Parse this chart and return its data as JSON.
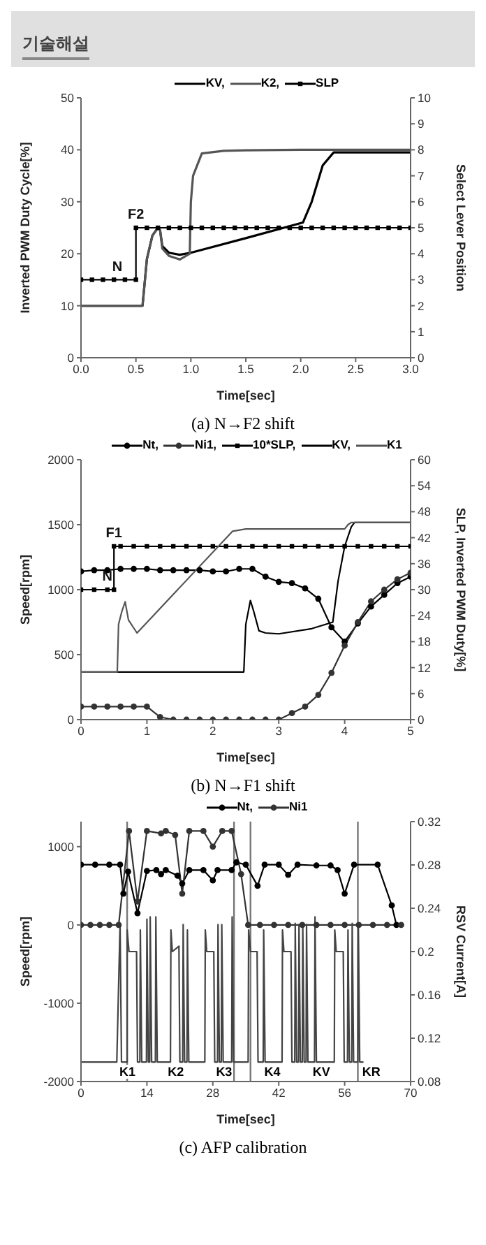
{
  "chart_data": [
    {
      "type": "other",
      "title": "기술해설"
    },
    {
      "type": "line",
      "xlabel": "Time[sec]",
      "ylabel": "Inverted PWM Duty Cycle[%]",
      "y2label": "Select Lever Position",
      "legend": "top",
      "xlim": [
        0,
        3
      ],
      "xticks": [
        {
          "value": 0,
          "label": "0.0"
        },
        {
          "value": 0.5,
          "label": "0.5"
        },
        {
          "value": 1,
          "label": "1.0"
        },
        {
          "value": 1.5,
          "label": "1.5"
        },
        {
          "value": 2,
          "label": "2.0"
        },
        {
          "value": 2.5,
          "label": "2.5"
        },
        {
          "value": 3,
          "label": "3.0"
        }
      ],
      "ylim": [
        0,
        50
      ],
      "yticks": [
        0,
        10,
        20,
        30,
        40,
        50
      ],
      "y2lim": [
        0,
        10
      ],
      "y2ticks": [
        0,
        1,
        2,
        3,
        4,
        5,
        6,
        7,
        8,
        9,
        10
      ],
      "series": [
        {
          "name": "KV,",
          "color": "#000000",
          "marker": "none",
          "x": [
            0,
            0.56,
            0.6,
            0.65,
            0.7,
            0.72,
            0.74,
            0.8,
            0.9,
            1.0,
            1.5,
            2.02,
            2.1,
            2.2,
            2.3,
            3.0
          ],
          "values": [
            10,
            10,
            19,
            23.5,
            25,
            24.5,
            21.5,
            20.2,
            19.8,
            20.2,
            23,
            26,
            30,
            37,
            39.5,
            39.5
          ]
        },
        {
          "name": "K2,",
          "color": "#555555",
          "marker": "none",
          "x": [
            0,
            0.56,
            0.6,
            0.65,
            0.7,
            0.72,
            0.74,
            0.8,
            0.9,
            0.99,
            1.0,
            1.02,
            1.1,
            1.3,
            1.5,
            2.0,
            3.0
          ],
          "values": [
            10,
            10,
            19,
            23.5,
            25,
            24.5,
            21,
            19.6,
            18.9,
            20,
            30,
            35,
            39.3,
            39.8,
            39.9,
            40,
            40
          ]
        },
        {
          "name": "SLP",
          "color": "#000000",
          "marker": "square",
          "axis": "y2",
          "x": [
            0,
            0.1,
            0.2,
            0.3,
            0.4,
            0.5,
            0.5,
            0.6,
            0.7,
            0.8,
            0.9,
            1.0,
            1.1,
            1.2,
            1.3,
            1.4,
            1.5,
            1.6,
            1.7,
            1.8,
            1.9,
            2.0,
            2.1,
            2.2,
            2.3,
            2.4,
            2.5,
            2.6,
            2.7,
            2.8,
            2.9,
            3.0
          ],
          "values": [
            3,
            3,
            3,
            3,
            3,
            3,
            5,
            5,
            5,
            5,
            5,
            5,
            5,
            5,
            5,
            5,
            5,
            5,
            5,
            5,
            5,
            5,
            5,
            5,
            5,
            5,
            5,
            5,
            5,
            5,
            5,
            5
          ]
        }
      ],
      "annotations": [
        {
          "text": "N",
          "x": 0.33,
          "y": 15
        },
        {
          "text": "F2",
          "x": 0.5,
          "y": 25
        },
        "(a)  N→F2  shift"
      ]
    },
    {
      "type": "line",
      "xlabel": "Time[sec]",
      "ylabel": "Speed[rpm]",
      "y2label": "SLP, Inverted PWM Duty[%]",
      "legend": "top",
      "xlim": [
        0,
        5
      ],
      "xticks": [
        0,
        1,
        2,
        3,
        4,
        5
      ],
      "ylim": [
        0,
        2000
      ],
      "yticks": [
        0,
        500,
        1000,
        1500,
        2000
      ],
      "y2lim": [
        0,
        60
      ],
      "y2ticks": [
        0,
        6,
        12,
        18,
        24,
        30,
        36,
        42,
        48,
        54,
        60
      ],
      "series": [
        {
          "name": "Nt,",
          "color": "#000000",
          "marker": "circle",
          "x": [
            0,
            0.2,
            0.4,
            0.6,
            0.8,
            1.0,
            1.2,
            1.4,
            1.6,
            1.8,
            2.0,
            2.2,
            2.4,
            2.6,
            2.8,
            3.0,
            3.2,
            3.4,
            3.6,
            3.8,
            4.0,
            4.2,
            4.4,
            4.6,
            4.8,
            5.0
          ],
          "values": [
            1140,
            1150,
            1150,
            1160,
            1160,
            1160,
            1150,
            1150,
            1150,
            1150,
            1140,
            1140,
            1160,
            1160,
            1100,
            1060,
            1050,
            1010,
            930,
            710,
            600,
            740,
            870,
            960,
            1050,
            1100
          ]
        },
        {
          "name": "Ni1,",
          "color": "#333333",
          "marker": "circle",
          "x": [
            0,
            0.2,
            0.4,
            0.6,
            0.8,
            1.0,
            1.2,
            1.4,
            1.6,
            1.8,
            2.0,
            2.2,
            2.4,
            2.6,
            2.8,
            3.0,
            3.2,
            3.4,
            3.6,
            3.8,
            4.0,
            4.2,
            4.4,
            4.6,
            4.8,
            5.0
          ],
          "values": [
            100,
            100,
            100,
            100,
            100,
            100,
            20,
            0,
            0,
            0,
            0,
            0,
            0,
            0,
            0,
            0,
            50,
            100,
            190,
            360,
            570,
            750,
            910,
            1000,
            1080,
            1130
          ]
        },
        {
          "name": "10*SLP,",
          "color": "#000000",
          "marker": "square",
          "axis": "y2",
          "x": [
            0,
            0.2,
            0.4,
            0.5,
            0.5,
            0.6,
            0.8,
            1.0,
            1.2,
            1.4,
            1.6,
            1.8,
            2.0,
            2.2,
            2.4,
            2.6,
            2.8,
            3.0,
            3.2,
            3.4,
            3.6,
            3.8,
            4.0,
            4.2,
            4.4,
            4.6,
            4.8,
            5.0
          ],
          "values": [
            30,
            30,
            30,
            30,
            40,
            40,
            40,
            40,
            40,
            40,
            40,
            40,
            40,
            40,
            40,
            40,
            40,
            40,
            40,
            40,
            40,
            40,
            40,
            40,
            40,
            40,
            40,
            40
          ]
        },
        {
          "name": "KV,",
          "color": "#000000",
          "marker": "none",
          "axis": "y2",
          "x": [
            0,
            2.47,
            2.5,
            2.57,
            2.62,
            2.7,
            2.8,
            3.0,
            3.5,
            3.82,
            3.9,
            4.0,
            4.1,
            4.15,
            5.0
          ],
          "values": [
            11,
            11,
            22,
            27.5,
            25,
            20.5,
            20,
            19.8,
            21,
            22.5,
            32,
            40,
            44.5,
            45.5,
            45.5
          ]
        },
        {
          "name": "K1",
          "color": "#555555",
          "marker": "none",
          "axis": "y2",
          "x": [
            0,
            0.55,
            0.57,
            0.62,
            0.67,
            0.72,
            0.85,
            2.3,
            2.5,
            4.0,
            4.05,
            4.1,
            5.0
          ],
          "values": [
            11,
            11,
            22,
            25,
            27.2,
            23,
            20,
            43.5,
            44,
            44,
            45,
            45.5,
            45.5
          ]
        }
      ],
      "annotations": [
        {
          "text": "F1",
          "x": 0.5,
          "y": 1333
        },
        {
          "text": "N",
          "x": 0.4,
          "y": 1000
        },
        "(b)  N→F1  shift"
      ]
    },
    {
      "type": "line",
      "xlabel": "Time[sec]",
      "ylabel": "Speed[rpm]",
      "y2label": "RSV Current[A]",
      "legend": "top",
      "xlim": [
        0,
        70
      ],
      "xticks": [
        0,
        14,
        28,
        42,
        56,
        70
      ],
      "ylim": [
        -2000,
        1320
      ],
      "yticks": [
        -2000,
        -1000,
        0,
        1000
      ],
      "y2lim": [
        0.08,
        0.32
      ],
      "y2ticks": [
        0.08,
        0.12,
        0.16,
        0.2,
        0.24,
        0.28,
        0.32
      ],
      "series": [
        {
          "name": "Nt,",
          "color": "#000000",
          "marker": "circle",
          "x": [
            0,
            3,
            6,
            8.3,
            9,
            10,
            12,
            14,
            16,
            17,
            18,
            20.5,
            21.5,
            23,
            26,
            28,
            29,
            32,
            33,
            35,
            37.5,
            39,
            42,
            44,
            46,
            50,
            53,
            54.5,
            56,
            58,
            63,
            66,
            67
          ],
          "values": [
            770,
            770,
            770,
            770,
            400,
            680,
            150,
            690,
            700,
            650,
            700,
            630,
            530,
            700,
            700,
            570,
            700,
            700,
            800,
            770,
            500,
            770,
            770,
            640,
            770,
            760,
            760,
            700,
            400,
            770,
            770,
            250,
            0
          ]
        },
        {
          "name": "Ni1",
          "color": "#333333",
          "marker": "circle",
          "x": [
            0,
            2,
            4,
            6,
            8,
            10.2,
            12,
            14,
            17,
            18,
            20,
            21.5,
            23,
            26,
            28,
            30,
            32,
            34,
            35.5,
            38,
            41,
            44,
            47,
            50,
            53,
            56,
            59,
            62,
            65,
            68
          ],
          "values": [
            0,
            0,
            0,
            0,
            0,
            1200,
            300,
            1200,
            1170,
            1200,
            1150,
            400,
            1200,
            1200,
            1000,
            1200,
            1200,
            650,
            0,
            0,
            0,
            0,
            0,
            0,
            0,
            0,
            0,
            0,
            0,
            0
          ]
        },
        {
          "color": "#444444",
          "marker": "none",
          "axis": "y2",
          "x": [
            0,
            7.6,
            8.3,
            8.6,
            9.8,
            9.8,
            10.2,
            11.8,
            12,
            12.5,
            12.6,
            12.9,
            13.9,
            14,
            14.3,
            14.6,
            14.7,
            15,
            15.8,
            15.9,
            16.2,
            19,
            19.1,
            19.4,
            20.8,
            21,
            21.6,
            21.7,
            22,
            22.5,
            22.6,
            22.9,
            26.3,
            26.4,
            26.7,
            28.2,
            28.4,
            29,
            29.1,
            29.4,
            29.8,
            29.9,
            30.2,
            32,
            32.1,
            32.4,
            35.5,
            35.6,
            36,
            37.4,
            37.6,
            38.7,
            38.8,
            39.1,
            42.7,
            42.8,
            43.1,
            44.6,
            44.8,
            45.4,
            45.5,
            45.8,
            46.2,
            46.3,
            46.6,
            47,
            47.1,
            47.4,
            47.8,
            47.9,
            48.2,
            49.6,
            49.7,
            50,
            53.8,
            53.9,
            54.2,
            55.7,
            55.9,
            56.6,
            56.7,
            57,
            57.5,
            57.6,
            57.9,
            58.8,
            58.9,
            59.2,
            60
          ],
          "values": [
            0.098,
            0.098,
            0.226,
            0.098,
            0.098,
            0.22,
            0.2,
            0.2,
            0.098,
            0.098,
            0.22,
            0.098,
            0.098,
            0.23,
            0.098,
            0.098,
            0.232,
            0.098,
            0.098,
            0.232,
            0.098,
            0.098,
            0.22,
            0.2,
            0.205,
            0.098,
            0.098,
            0.225,
            0.098,
            0.098,
            0.22,
            0.098,
            0.098,
            0.22,
            0.2,
            0.2,
            0.098,
            0.098,
            0.225,
            0.098,
            0.098,
            0.225,
            0.098,
            0.098,
            0.232,
            0.098,
            0.098,
            0.22,
            0.2,
            0.2,
            0.098,
            0.098,
            0.22,
            0.098,
            0.098,
            0.22,
            0.2,
            0.2,
            0.098,
            0.098,
            0.226,
            0.098,
            0.098,
            0.225,
            0.098,
            0.098,
            0.225,
            0.098,
            0.098,
            0.225,
            0.098,
            0.098,
            0.232,
            0.098,
            0.098,
            0.22,
            0.2,
            0.2,
            0.098,
            0.098,
            0.22,
            0.098,
            0.098,
            0.226,
            0.098,
            0.098,
            0.226,
            0.098,
            0.098
          ]
        }
      ],
      "ref_lines": [
        {
          "axis": "x",
          "value": 9.8,
          "color": "#777777"
        },
        {
          "axis": "x",
          "value": 32.5,
          "color": "#777777"
        },
        {
          "axis": "x",
          "value": 36,
          "color": "#777777"
        },
        {
          "axis": "x",
          "value": 58.8,
          "color": "#777777"
        }
      ],
      "annotations": [
        "K1",
        "K2",
        "K3",
        "K4",
        "KV",
        "KR",
        "(c)  AFP calibration"
      ]
    }
  ]
}
